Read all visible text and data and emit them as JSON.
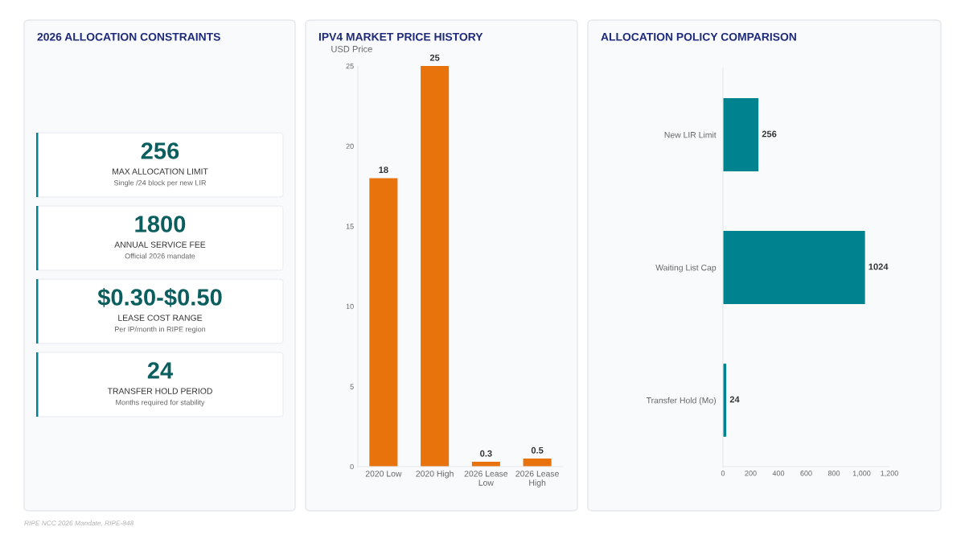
{
  "chart_data": [
    {
      "type": "other",
      "title": "2026 ALLOCATION CONSTRAINTS",
      "annotations": [
        "256",
        "MAX ALLOCATION LIMIT",
        "Single /24 block per new LIR",
        "1800",
        "ANNUAL SERVICE FEE",
        "Official 2026 mandate",
        "$0.30-$0.50",
        "LEASE COST RANGE",
        "Per IP/month in RIPE region",
        "24",
        "TRANSFER HOLD PERIOD",
        "Months required for stability"
      ]
    },
    {
      "type": "bar",
      "title": "IPV4 MARKET PRICE HISTORY",
      "ylabel": "USD Price",
      "categories": [
        "2020 Low",
        "2020 High",
        "2026 Lease Low",
        "2026 Lease High"
      ],
      "values": [
        18,
        25,
        0.3,
        0.5
      ],
      "color": "#e8720c",
      "ylim": [
        0,
        25
      ],
      "yticks": [
        0,
        5,
        10,
        15,
        20,
        25
      ],
      "data_labels": true,
      "grid": false
    },
    {
      "type": "bar",
      "orientation": "horizontal",
      "title": "ALLOCATION POLICY COMPARISON",
      "categories": [
        "New LIR Limit",
        "Waiting List Cap",
        "Transfer Hold (Mo)"
      ],
      "values": [
        256,
        1024,
        24
      ],
      "color": "#00838f",
      "xlim": [
        0,
        1200
      ],
      "xticks": [
        0,
        200,
        400,
        600,
        800,
        {
          "value": 1000,
          "label": "1,000"
        },
        {
          "value": 1200,
          "label": "1,200"
        }
      ],
      "data_labels": true,
      "grid": false,
      "annotations": [
        "RIPE NCC 2026 Mandate, RIPE-848"
      ]
    }
  ]
}
